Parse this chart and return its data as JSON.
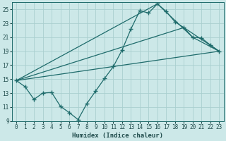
{
  "xlabel": "Humidex (Indice chaleur)",
  "background_color": "#cce8e8",
  "grid_color": "#aacfcf",
  "line_color": "#1e6b6b",
  "xlim": [
    -0.5,
    23.5
  ],
  "ylim": [
    9,
    26
  ],
  "xticks": [
    0,
    1,
    2,
    3,
    4,
    5,
    6,
    7,
    8,
    9,
    10,
    11,
    12,
    13,
    14,
    15,
    16,
    17,
    18,
    19,
    20,
    21,
    22,
    23
  ],
  "yticks": [
    9,
    11,
    13,
    15,
    17,
    19,
    21,
    23,
    25
  ],
  "line1_x": [
    0,
    1,
    2,
    3,
    4,
    5,
    6,
    7,
    8,
    9,
    10,
    11,
    12,
    13,
    14,
    15,
    16,
    17,
    18,
    19,
    20,
    21,
    22,
    23
  ],
  "line1_y": [
    14.8,
    13.9,
    12.1,
    13.0,
    13.1,
    11.1,
    10.2,
    9.2,
    11.5,
    13.3,
    15.1,
    16.8,
    19.2,
    22.2,
    24.8,
    24.5,
    25.8,
    24.7,
    23.2,
    22.4,
    21.0,
    20.9,
    19.9,
    19.0
  ],
  "line3_x": [
    0,
    16,
    20,
    23
  ],
  "line3_y": [
    14.8,
    25.8,
    21.0,
    19.0
  ],
  "line4_x": [
    0,
    19,
    23
  ],
  "line4_y": [
    14.8,
    22.4,
    19.0
  ],
  "line5_x": [
    0,
    23
  ],
  "line5_y": [
    14.8,
    19.0
  ]
}
